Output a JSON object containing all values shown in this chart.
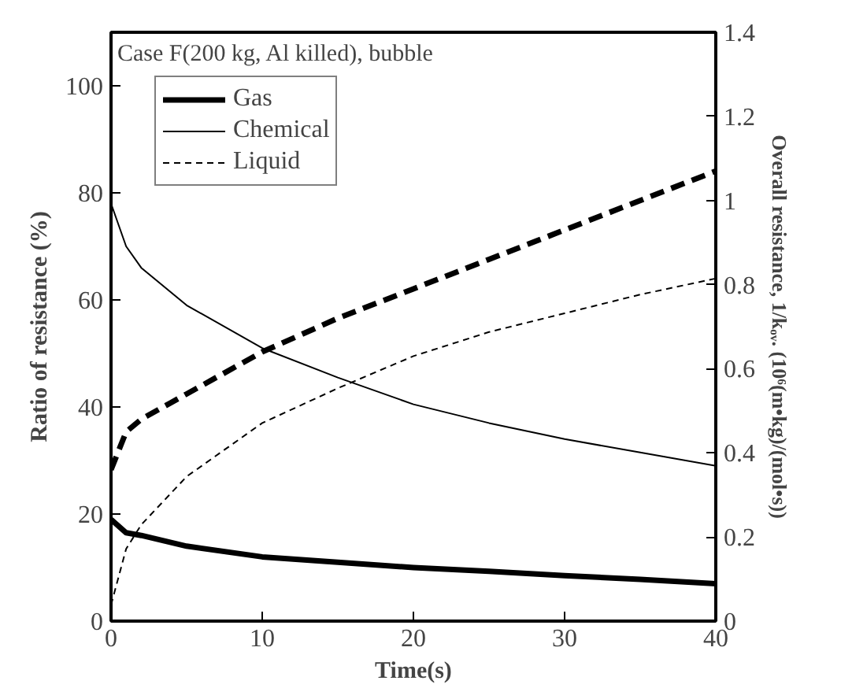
{
  "chart_data": {
    "type": "line",
    "xlabel": "Time(s)",
    "ylabel": "Ratio of resistance (%)",
    "y2label": "Overall resistance, 1/kₒᵥ. (10⁶(m•kg)/(mol•s))",
    "annotations": [
      "Case F(200 kg, Al killed), bubble"
    ],
    "x": [
      0,
      1,
      2,
      5,
      10,
      15,
      20,
      25,
      30,
      35,
      40
    ],
    "xlim": [
      0,
      40
    ],
    "xticks": [
      0,
      10,
      20,
      30,
      40
    ],
    "ylim": [
      0,
      110
    ],
    "yticks": [
      0,
      20,
      40,
      60,
      80,
      100
    ],
    "y2lim": [
      0,
      1.4
    ],
    "y2ticks": [
      0,
      0.2,
      0.4,
      0.6,
      0.8,
      1,
      1.2,
      1.4
    ],
    "legend": "top left",
    "grid": false,
    "series": [
      {
        "name": "Gas",
        "color": "#000000",
        "line_style": "solid",
        "values": [
          19,
          16.5,
          16,
          14,
          12,
          11,
          10,
          9.3,
          8.5,
          7.8,
          7
        ]
      },
      {
        "name": "Chemical",
        "color": "#000000",
        "line_style": "solid",
        "values": [
          78,
          70,
          66,
          59,
          51,
          45.5,
          40.5,
          37,
          34,
          31.5,
          29
        ]
      },
      {
        "name": "Liquid",
        "color": "#000000",
        "line_style": "dashed",
        "values": [
          3,
          13.5,
          18,
          27,
          37,
          43.5,
          49.5,
          54,
          57.5,
          61,
          64
        ]
      },
      {
        "color": "#000000",
        "line_style": "dashed",
        "axis": "y2",
        "values": [
          0.36,
          0.45,
          0.48,
          0.54,
          0.64,
          0.72,
          0.79,
          0.86,
          0.93,
          1.0,
          1.07
        ]
      }
    ]
  }
}
